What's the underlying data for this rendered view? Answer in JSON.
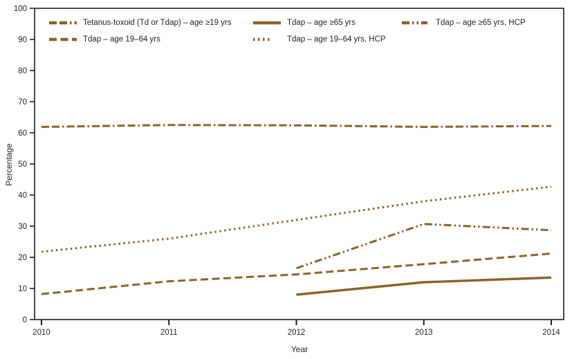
{
  "figure": {
    "background": "#ffffff"
  },
  "chart_data": {
    "type": "line",
    "title": "",
    "xlabel": "Year",
    "ylabel": "Percentage",
    "x": [
      2010,
      2011,
      2012,
      2013,
      2014
    ],
    "x_tick_labels": [
      "2010",
      "2011",
      "2012",
      "2013",
      "2014"
    ],
    "ylim": [
      0,
      100
    ],
    "y_ticks": [
      0,
      10,
      20,
      30,
      40,
      50,
      60,
      70,
      80,
      90,
      100
    ],
    "grid": false,
    "legend_position": "top-inside",
    "line_color": "#8a6428",
    "axis_color": "#1a1a1a",
    "text_color": "#231f20",
    "series": [
      {
        "name": "Tetanus-toxoid (Td or Tdap) – age ≥19 yrs",
        "style": "dash-dash-dot",
        "values": [
          61.9,
          62.5,
          62.4,
          61.9,
          62.2
        ]
      },
      {
        "name": "Tdap – age 19–64 yrs",
        "style": "dash",
        "values": [
          8.2,
          12.3,
          14.5,
          17.8,
          21.2
        ]
      },
      {
        "name": "Tdap – age ≥65 yrs",
        "style": "solid",
        "values": [
          null,
          null,
          8.0,
          12.0,
          13.5
        ]
      },
      {
        "name": "Tdap – age 19–64 yrs, HCP",
        "style": "dot",
        "values": [
          21.8,
          26.0,
          32.0,
          38.0,
          42.7
        ]
      },
      {
        "name": "Tdap – age ≥65 yrs, HCP",
        "style": "dash-dot-dot",
        "values": [
          null,
          null,
          16.5,
          30.7,
          28.7
        ]
      }
    ]
  }
}
